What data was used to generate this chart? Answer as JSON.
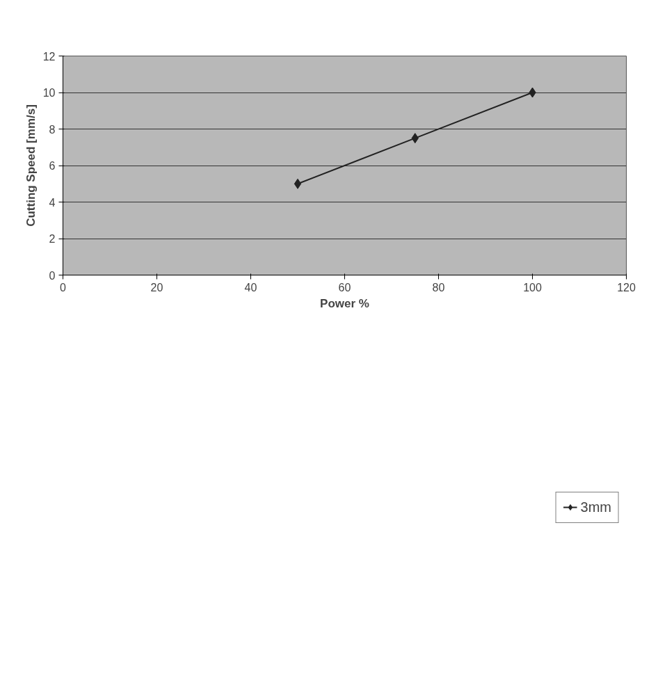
{
  "chart_data": {
    "type": "line",
    "xlabel": "Power %",
    "ylabel": "Cutting Speed [mm/s]",
    "x": [
      50,
      75,
      100
    ],
    "series": [
      {
        "name": "3mm",
        "color": "#222222",
        "values": [
          5,
          7.5,
          10
        ]
      }
    ],
    "xlim": [
      0,
      120
    ],
    "xticks": [
      0,
      20,
      40,
      60,
      80,
      100,
      120
    ],
    "ylim": [
      0,
      12
    ],
    "yticks": [
      0,
      2,
      4,
      6,
      8,
      10,
      12
    ],
    "grid": "y",
    "legend": "bottom",
    "marker": "diamond",
    "line_style": "solid"
  }
}
